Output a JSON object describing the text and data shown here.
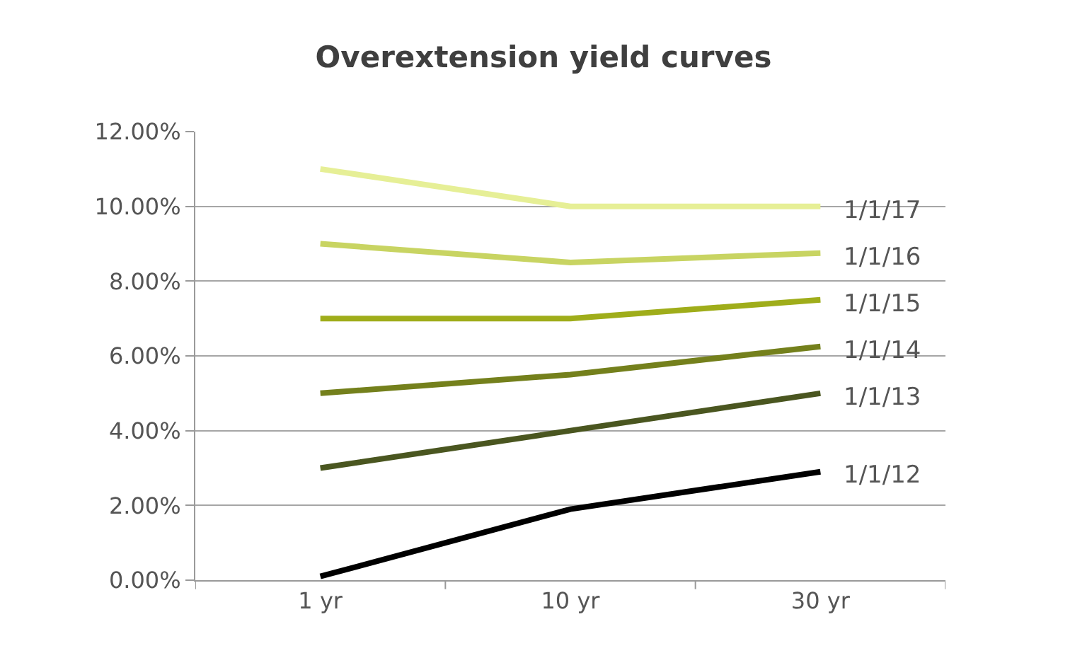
{
  "chart_data": {
    "type": "line",
    "title": "Overextension yield curves",
    "categories": [
      "1 yr",
      "10 yr",
      "30 yr"
    ],
    "series": [
      {
        "name": "1/1/12",
        "color": "#000000",
        "values": [
          0.1,
          1.9,
          2.9
        ]
      },
      {
        "name": "1/1/13",
        "color": "#4a5620",
        "values": [
          3,
          4,
          5
        ]
      },
      {
        "name": "1/1/14",
        "color": "#74801c",
        "values": [
          5,
          5.5,
          6.25
        ]
      },
      {
        "name": "1/1/15",
        "color": "#9fad1a",
        "values": [
          7,
          7,
          7.5
        ]
      },
      {
        "name": "1/1/16",
        "color": "#c8d462",
        "values": [
          9,
          8.5,
          8.75
        ]
      },
      {
        "name": "1/1/17",
        "color": "#e6ef96",
        "values": [
          11,
          10,
          10
        ]
      }
    ],
    "ylim": [
      0,
      12
    ],
    "yticks": [
      {
        "value": 0,
        "label": "0.00%"
      },
      {
        "value": 2,
        "label": "2.00%"
      },
      {
        "value": 4,
        "label": "4.00%"
      },
      {
        "value": 6,
        "label": "6.00%"
      },
      {
        "value": 8,
        "label": "8.00%"
      },
      {
        "value": 10,
        "label": "10.00%"
      },
      {
        "value": 12,
        "label": "12.00%"
      }
    ],
    "grid": "y",
    "legend": false,
    "marker": "none",
    "line_style": "solid"
  }
}
